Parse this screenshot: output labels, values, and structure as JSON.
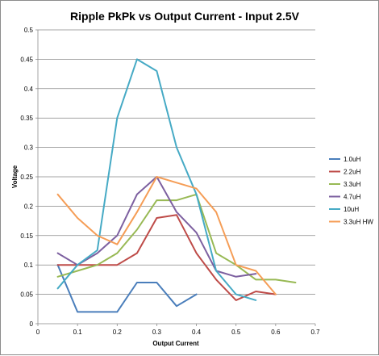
{
  "chart_data": {
    "type": "line",
    "title": "Ripple PkPk vs Output Current - Input 2.5V",
    "xlabel": "Output Current",
    "ylabel": "Voltage",
    "xlim": [
      0,
      0.7
    ],
    "ylim": [
      0,
      0.5
    ],
    "x_ticks": [
      "0",
      "0.1",
      "0.2",
      "0.3",
      "0.4",
      "0.5",
      "0.6",
      "0.7"
    ],
    "y_ticks": [
      "0",
      "0.05",
      "0.1",
      "0.15",
      "0.2",
      "0.25",
      "0.3",
      "0.35",
      "0.4",
      "0.45",
      "0.5"
    ],
    "grid": "horizontal",
    "legend_position": "right",
    "series": [
      {
        "name": "1.0uH",
        "color": "#4a7ebb",
        "x": [
          0.05,
          0.1,
          0.15,
          0.2,
          0.25,
          0.3,
          0.35,
          0.4
        ],
        "y": [
          0.1,
          0.02,
          0.02,
          0.02,
          0.07,
          0.07,
          0.03,
          0.05
        ]
      },
      {
        "name": "2.2uH",
        "color": "#be4b48",
        "x": [
          0.05,
          0.1,
          0.15,
          0.2,
          0.25,
          0.3,
          0.35,
          0.4,
          0.45,
          0.5,
          0.55,
          0.6
        ],
        "y": [
          0.1,
          0.1,
          0.1,
          0.1,
          0.12,
          0.18,
          0.185,
          0.12,
          0.075,
          0.04,
          0.055,
          0.05
        ]
      },
      {
        "name": "3.3uH",
        "color": "#98b954",
        "x": [
          0.05,
          0.1,
          0.15,
          0.2,
          0.25,
          0.3,
          0.35,
          0.4,
          0.45,
          0.5,
          0.55,
          0.6,
          0.65
        ],
        "y": [
          0.08,
          0.09,
          0.1,
          0.12,
          0.16,
          0.21,
          0.21,
          0.22,
          0.12,
          0.1,
          0.075,
          0.075,
          0.07
        ]
      },
      {
        "name": "4.7uH",
        "color": "#7d60a0",
        "x": [
          0.05,
          0.1,
          0.15,
          0.2,
          0.25,
          0.3,
          0.35,
          0.4,
          0.45,
          0.5,
          0.55
        ],
        "y": [
          0.12,
          0.1,
          0.12,
          0.15,
          0.22,
          0.25,
          0.19,
          0.155,
          0.09,
          0.08,
          0.085
        ]
      },
      {
        "name": "10uH",
        "color": "#46aac5",
        "x": [
          0.05,
          0.1,
          0.15,
          0.2,
          0.25,
          0.3,
          0.35,
          0.4,
          0.45,
          0.5,
          0.55
        ],
        "y": [
          0.06,
          0.1,
          0.125,
          0.35,
          0.45,
          0.43,
          0.3,
          0.22,
          0.09,
          0.05,
          0.04
        ]
      },
      {
        "name": "3.3uH HW",
        "color": "#f59d56",
        "x": [
          0.05,
          0.1,
          0.15,
          0.2,
          0.25,
          0.3,
          0.35,
          0.4,
          0.45,
          0.5,
          0.55,
          0.6
        ],
        "y": [
          0.22,
          0.18,
          0.15,
          0.135,
          0.19,
          0.25,
          0.24,
          0.23,
          0.19,
          0.1,
          0.09,
          0.05
        ]
      }
    ]
  }
}
